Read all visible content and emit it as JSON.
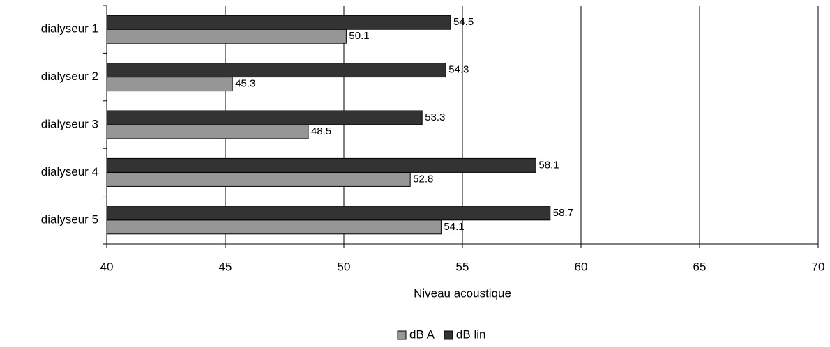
{
  "chart_data": {
    "type": "hbar",
    "x_label": "Niveau acoustique",
    "categories": [
      "dialyseur 1",
      "dialyseur 2",
      "dialyseur 3",
      "dialyseur 4",
      "dialyseur 5"
    ],
    "series": [
      {
        "name": "dB A",
        "color": "#969696",
        "values": [
          50.1,
          45.3,
          48.5,
          52.8,
          54.1
        ]
      },
      {
        "name": "dB lin",
        "color": "#333333",
        "values": [
          54.5,
          54.3,
          53.3,
          58.1,
          58.7
        ]
      }
    ],
    "xlim": [
      40,
      70
    ],
    "xticks": [
      40,
      45,
      50,
      55,
      60,
      65,
      70
    ],
    "grid": true,
    "legend": "bottom"
  }
}
